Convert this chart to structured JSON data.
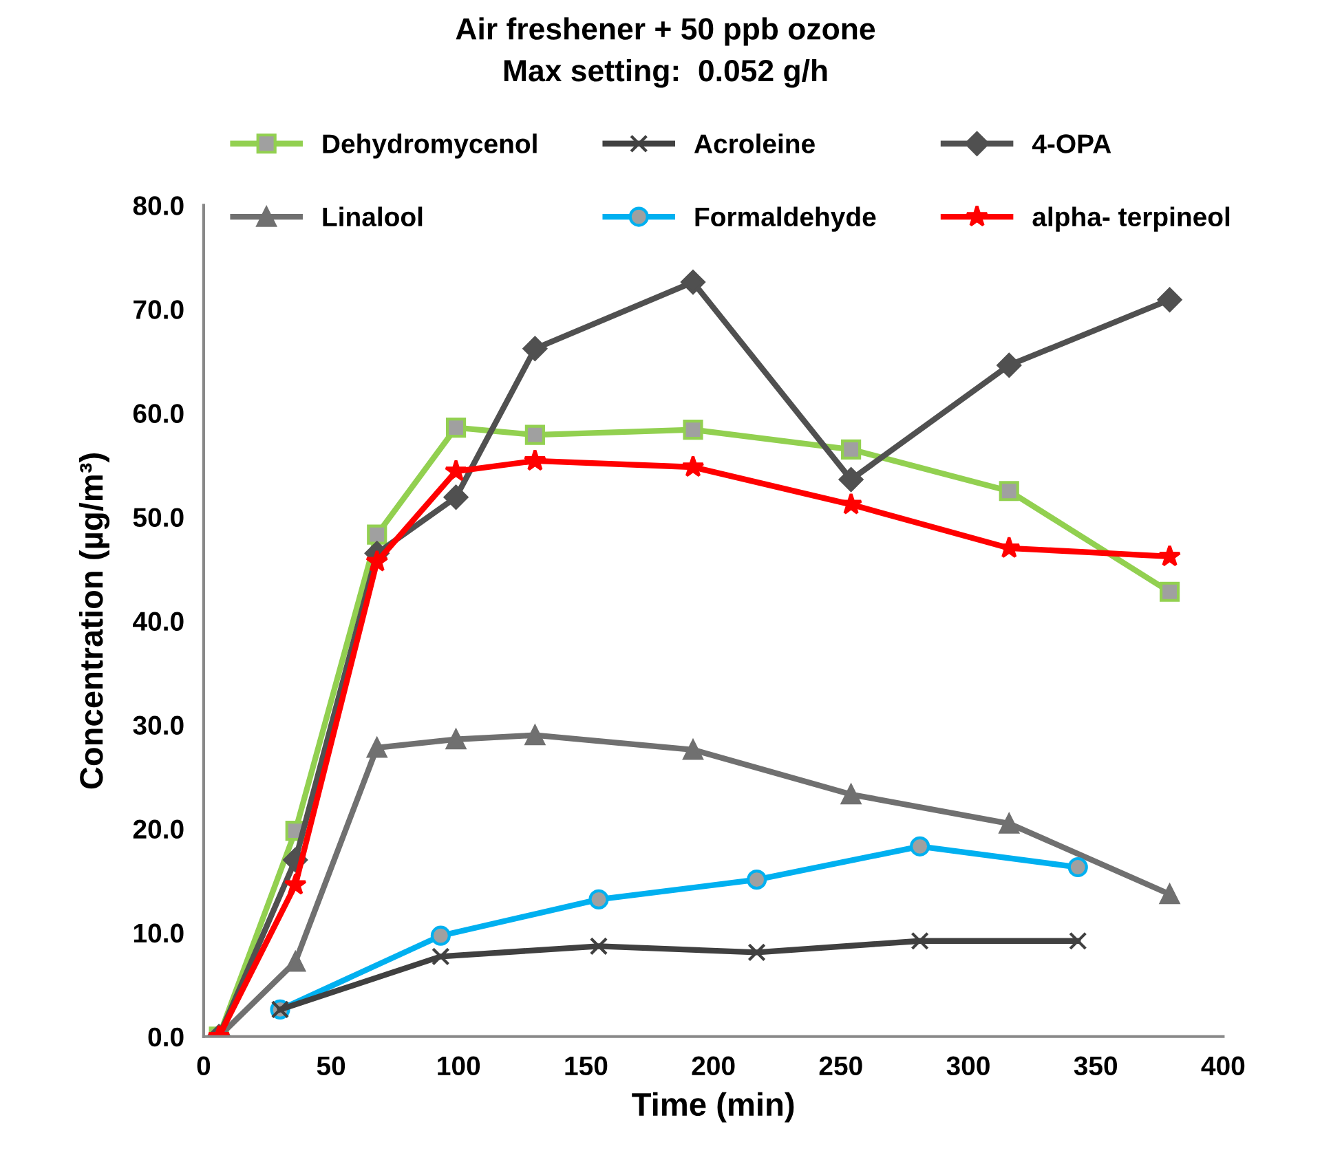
{
  "chart_data": {
    "type": "line",
    "title": "Air freshener + 50 ppb ozone\nMax setting:  0.052 g/h",
    "xlabel": "Time (min)",
    "ylabel": "Concentration (µg/m³)",
    "xlim": [
      0,
      400
    ],
    "xticks": [
      0,
      50,
      100,
      150,
      200,
      250,
      300,
      350,
      400
    ],
    "ylim": [
      0,
      80
    ],
    "yticks": [
      {
        "value": 0,
        "label": "0.0"
      },
      {
        "value": 10,
        "label": "10.0"
      },
      {
        "value": 20,
        "label": "20.0"
      },
      {
        "value": 30,
        "label": "30.0"
      },
      {
        "value": 40,
        "label": "40.0"
      },
      {
        "value": 50,
        "label": "50.0"
      },
      {
        "value": 60,
        "label": "60.0"
      },
      {
        "value": 70,
        "label": "70.0"
      },
      {
        "value": 80,
        "label": "80.0"
      }
    ],
    "grid": false,
    "legend": "top",
    "series": [
      {
        "name": "Dehydromycenol",
        "color": "#92d050",
        "marker": "square",
        "x": [
          6,
          36,
          68,
          99,
          130,
          192,
          254,
          316,
          379
        ],
        "values": [
          0,
          19.8,
          48.3,
          58.6,
          57.9,
          58.4,
          56.5,
          52.5,
          42.8
        ]
      },
      {
        "name": "Acroleine",
        "color": "#404040",
        "marker": "cross",
        "x": [
          30,
          93,
          155,
          217,
          281,
          343
        ],
        "values": [
          2.6,
          7.7,
          8.7,
          8.1,
          9.2,
          9.2
        ]
      },
      {
        "name": "4-OPA",
        "color": "#505050",
        "marker": "diamond",
        "x": [
          6,
          36,
          68,
          99,
          130,
          192,
          254,
          316,
          379
        ],
        "values": [
          0,
          17.0,
          46.5,
          51.9,
          66.2,
          72.6,
          53.6,
          64.6,
          70.9
        ]
      },
      {
        "name": "Linalool",
        "color": "#707070",
        "marker": "triangle",
        "x": [
          6,
          36,
          68,
          99,
          130,
          192,
          254,
          316,
          379
        ],
        "values": [
          0,
          7.2,
          27.8,
          28.6,
          29.0,
          27.6,
          23.3,
          20.5,
          13.7
        ]
      },
      {
        "name": "Formaldehyde",
        "color": "#00b0f0",
        "marker": "circle",
        "x": [
          30,
          93,
          155,
          217,
          281,
          343
        ],
        "values": [
          2.6,
          9.7,
          13.2,
          15.1,
          18.3,
          16.3
        ]
      },
      {
        "name": "alpha- terpineol",
        "color": "#ff0000",
        "marker": "star",
        "x": [
          6,
          36,
          68,
          99,
          130,
          192,
          254,
          316,
          379
        ],
        "values": [
          0,
          14.6,
          45.7,
          54.4,
          55.4,
          54.8,
          51.2,
          47.0,
          46.2
        ]
      }
    ]
  }
}
